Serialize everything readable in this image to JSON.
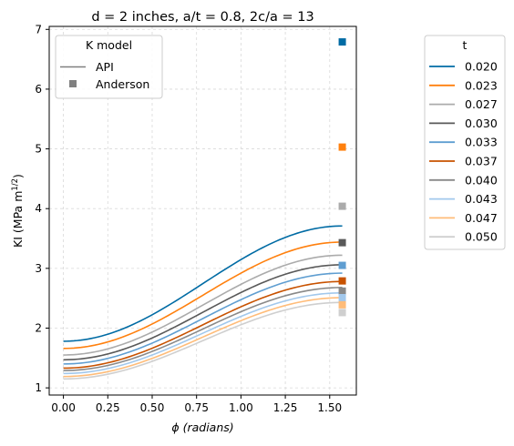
{
  "chart_data": {
    "type": "line",
    "title": "d = 2 inches, a/t = 0.8, 2c/a = 13",
    "xlabel": "ϕ (radians)",
    "ylabel_main": "KI (MPa m",
    "ylabel_sup": "1/2",
    "ylabel_close": ")",
    "xlim": [
      -0.08,
      1.65
    ],
    "ylim": [
      0.88,
      7.05
    ],
    "xticks": [
      0.0,
      0.25,
      0.5,
      0.75,
      1.0,
      1.25,
      1.5
    ],
    "xtick_labels": [
      "0.00",
      "0.25",
      "0.50",
      "0.75",
      "1.00",
      "1.25",
      "1.50"
    ],
    "yticks": [
      1,
      2,
      3,
      4,
      5,
      6,
      7
    ],
    "ytick_labels": [
      "1",
      "2",
      "3",
      "4",
      "5",
      "6",
      "7"
    ],
    "grid": true,
    "x_end": 1.5708,
    "model_legend": {
      "title": "K model",
      "entries": [
        {
          "label": "API",
          "marker": "line",
          "color": "#808080"
        },
        {
          "label": "Anderson",
          "marker": "square",
          "color": "#808080"
        }
      ],
      "placement": "top-left"
    },
    "series_legend": {
      "title": "t",
      "placement": "outside-right"
    },
    "series": [
      {
        "name": "0.020",
        "color": "#006ba4",
        "api_start": 1.78,
        "api_end": 3.71,
        "anderson": 6.79
      },
      {
        "name": "0.023",
        "color": "#ff800e",
        "api_start": 1.66,
        "api_end": 3.44,
        "anderson": 5.03
      },
      {
        "name": "0.027",
        "color": "#ababab",
        "api_start": 1.55,
        "api_end": 3.22,
        "anderson": 4.04
      },
      {
        "name": "0.030",
        "color": "#595959",
        "api_start": 1.47,
        "api_end": 3.06,
        "anderson": 3.43
      },
      {
        "name": "0.033",
        "color": "#5f9ed1",
        "api_start": 1.4,
        "api_end": 2.92,
        "anderson": 3.05
      },
      {
        "name": "0.037",
        "color": "#c85200",
        "api_start": 1.33,
        "api_end": 2.78,
        "anderson": 2.79
      },
      {
        "name": "0.040",
        "color": "#898989",
        "api_start": 1.29,
        "api_end": 2.68,
        "anderson": 2.62
      },
      {
        "name": "0.043",
        "color": "#a2c8ec",
        "api_start": 1.24,
        "api_end": 2.59,
        "anderson": 2.51
      },
      {
        "name": "0.047",
        "color": "#ffbc79",
        "api_start": 1.19,
        "api_end": 2.51,
        "anderson": 2.39
      },
      {
        "name": "0.050",
        "color": "#cfcfcf",
        "api_start": 1.15,
        "api_end": 2.43,
        "anderson": 2.26
      }
    ]
  }
}
